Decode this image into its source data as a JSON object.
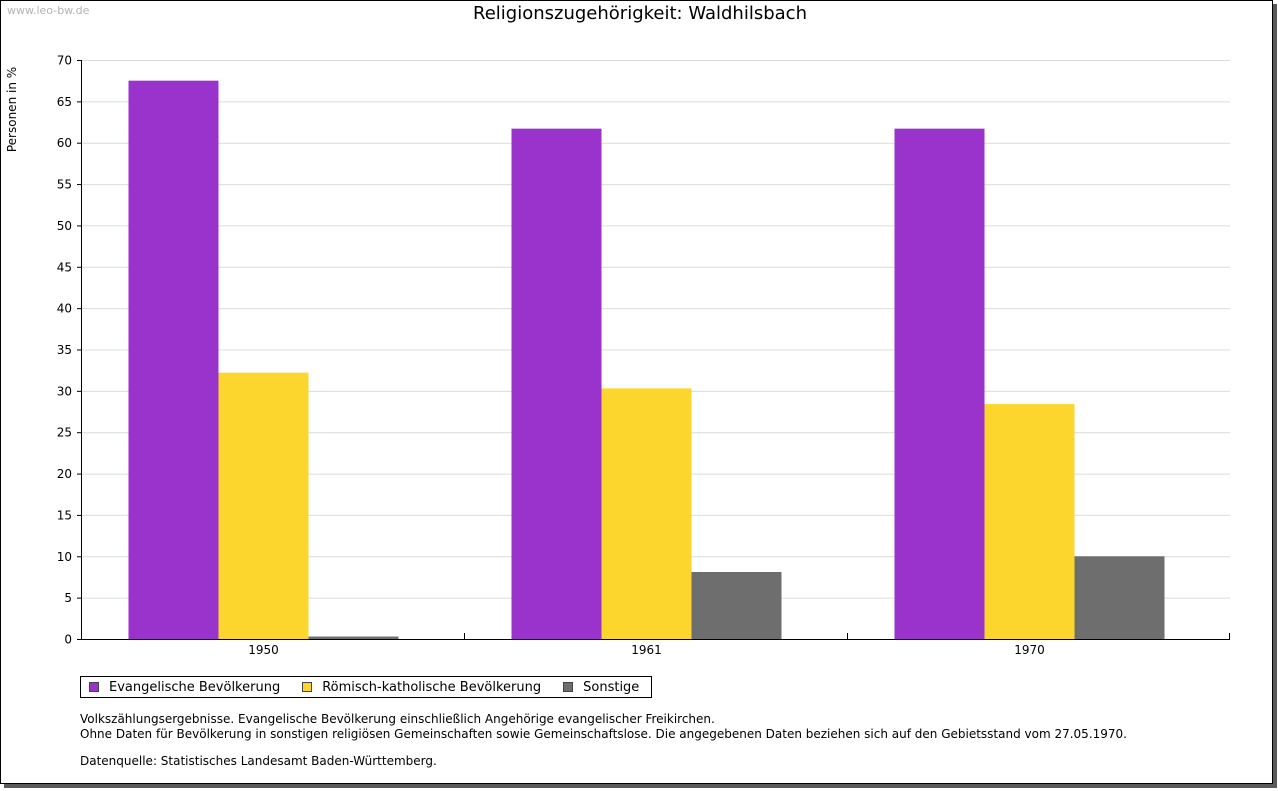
{
  "watermark": "www.leo-bw.de",
  "colors": {
    "evangelisch": "#9933cc",
    "katholisch": "#fcd62c",
    "sonstige": "#6e6e6e",
    "grid": "#dcdcdc",
    "axis": "#000000"
  },
  "chart_data": {
    "type": "bar",
    "title": "Religionszugehörigkeit: Waldhilsbach",
    "xlabel": "",
    "ylabel": "Personen in %",
    "ylim": [
      0,
      70
    ],
    "yticks": [
      0,
      5,
      10,
      15,
      20,
      25,
      30,
      35,
      40,
      45,
      50,
      55,
      60,
      65,
      70
    ],
    "grid": true,
    "legend_position": "bottom-left",
    "categories": [
      "1950",
      "1961",
      "1970"
    ],
    "series": [
      {
        "name": "Evangelische Bevölkerung",
        "color": "#9933cc",
        "values": [
          67.5,
          61.7,
          61.7
        ]
      },
      {
        "name": "Römisch-katholische Bevölkerung",
        "color": "#fcd62c",
        "values": [
          32.2,
          30.3,
          28.4
        ]
      },
      {
        "name": "Sonstige",
        "color": "#6e6e6e",
        "values": [
          0.3,
          8.1,
          10.0
        ]
      }
    ]
  },
  "footnotes": {
    "line1": "Volkszählungsergebnisse. Evangelische Bevölkerung einschließlich Angehörige evangelischer Freikirchen.",
    "line2": "Ohne Daten für Bevölkerung in sonstigen religiösen Gemeinschaften sowie Gemeinschaftslose. Die angegebenen Daten beziehen sich auf den Gebietsstand vom 27.05.1970.",
    "source": "Datenquelle: Statistisches Landesamt Baden-Württemberg."
  }
}
